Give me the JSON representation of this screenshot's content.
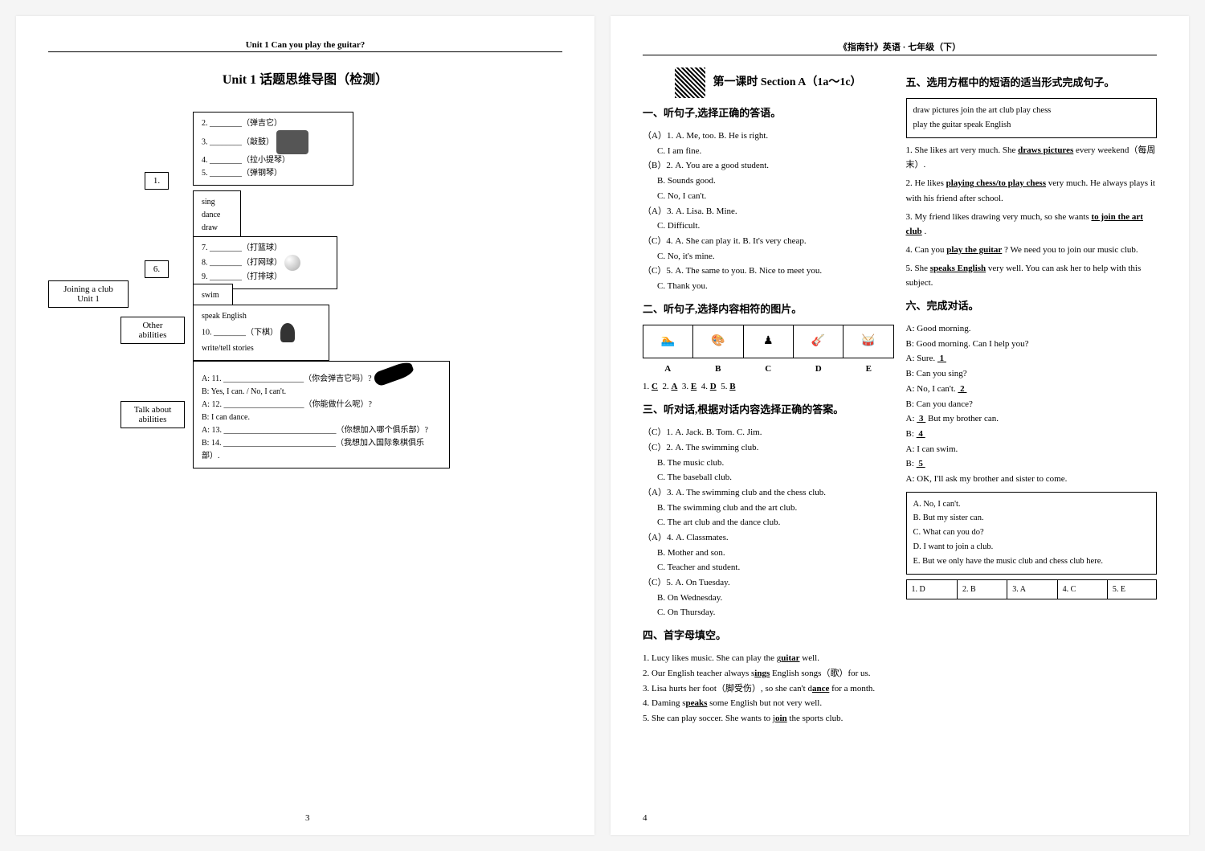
{
  "left_page": {
    "header": "Unit 1   Can you play the guitar?",
    "title": "Unit 1   话题思维导图（检测）",
    "page_number": "3",
    "mindmap": {
      "root": "Joining a club\nUnit 1",
      "branch1_num": "1.",
      "verbs_box": [
        "sing",
        "dance",
        "draw"
      ],
      "instruments": [
        "2. ________（弹吉它）",
        "3. ________（敲鼓）",
        "4. ________（拉小提琴）",
        "5. ________（弹钢琴）"
      ],
      "branch6_num": "6.",
      "sports": [
        "7. ________（打篮球）",
        "8. ________（打网球）",
        "9. ________（打排球）"
      ],
      "swim_box": "swim",
      "other_label": "Other abilities",
      "other_box": [
        "speak English",
        "10. ________（下棋）",
        "write/tell stories"
      ],
      "talk_label": "Talk about\nabilities",
      "talk_box": [
        "A: 11. ____________________（你会弹吉它吗）?",
        "B: Yes, I can. / No, I can't.",
        "A: 12. ____________________（你能做什么呢）?",
        "B: I can dance.",
        "A: 13. ____________________________（你想加入哪个俱乐部）?",
        "B: 14. ____________________________（我想加入国际象棋俱乐部）."
      ]
    }
  },
  "right_page": {
    "header": "《指南针》英语 · 七年级（下）",
    "page_number": "4",
    "lesson": "第一课时   Section A（1a～1c）",
    "sec1_title": "一、听句子,选择正确的答语。",
    "sec1": [
      "（A）1. A. Me, too.        B. He is right.",
      "          C. I am fine.",
      "（B）2. A. You are a good student.",
      "          B. Sounds good.",
      "          C. No, I can't.",
      "（A）3. A. Lisa.           B. Mine.",
      "          C. Difficult.",
      "（C）4. A. She can play it.   B. It's very cheap.",
      "          C. No, it's mine.",
      "（C）5. A. The same to you.  B. Nice to meet you.",
      "          C. Thank you."
    ],
    "sec2_title": "二、听句子,选择内容相符的图片。",
    "pic_labels": [
      "A",
      "B",
      "C",
      "D",
      "E"
    ],
    "sec2_ans_line": "1.  C   2.  A   3.  E   4.  D   5.  B",
    "sec3_title": "三、听对话,根据对话内容选择正确的答案。",
    "sec3": [
      "（C）1. A. Jack.      B. Tom.       C. Jim.",
      "（C）2. A. The swimming club.",
      "          B. The music club.",
      "          C. The baseball club.",
      "（A）3. A. The swimming club and the chess club.",
      "          B. The swimming club and the art club.",
      "          C. The art club and the dance club.",
      "（A）4. A. Classmates.",
      "          B. Mother and son.",
      "          C. Teacher and student.",
      "（C）5. A. On Tuesday.",
      "          B. On Wednesday.",
      "          C. On Thursday."
    ],
    "sec4_title": "四、首字母填空。",
    "sec4": [
      {
        "pre": "1. Lucy likes music. She can play the g",
        "ans": "uitar",
        "post": "   well."
      },
      {
        "pre": "2. Our English teacher always s",
        "ans": "ings",
        "post": "      English songs（歌）for us."
      },
      {
        "pre": "3. Lisa hurts her foot（脚受伤）, so she can't d",
        "ans": "ance",
        "post": "   for a month."
      },
      {
        "pre": "4. Daming s",
        "ans": "peaks",
        "post": "     some English but not very well."
      },
      {
        "pre": "5. She can play soccer. She wants to j",
        "ans": "oin",
        "post": "   the sports club."
      }
    ],
    "sec5_title": "五、选用方框中的短语的适当形式完成句子。",
    "sec5_box": "draw pictures     join the art club     play chess\nplay the guitar   speak English",
    "sec5": [
      {
        "pre": "1. She likes art very much. She  ",
        "ans": "draws pictures",
        "post": "  every weekend（每周末）."
      },
      {
        "pre": "2. He likes  ",
        "ans": "playing chess/to play chess",
        "post": "  very much. He always plays it with his friend after school."
      },
      {
        "pre": "3. My friend likes drawing very much, so she wants  ",
        "ans": "to join the art club",
        "post": "  ."
      },
      {
        "pre": "4. Can you  ",
        "ans": "play the guitar",
        "post": "  ? We need you to join our music club."
      },
      {
        "pre": "5. She  ",
        "ans": "speaks English",
        "post": "  very well. You can ask her to help with this subject."
      }
    ],
    "sec6_title": "六、完成对话。",
    "sec6_dialogue": [
      "A: Good morning.",
      "B: Good morning. Can I help you?",
      "A: Sure.   1  ",
      "B: Can you sing?",
      "A: No, I can't.   2  ",
      "B: Can you dance?",
      "A:   3   But my brother can.",
      "B:   4  ",
      "A: I can swim.",
      "B:   5  ",
      "A: OK, I'll ask my brother and sister to come."
    ],
    "sec6_options": [
      "A. No, I can't.",
      "B. But my sister can.",
      "C. What can you do?",
      "D. I want to join a club.",
      "E. But we only have the music club and chess club here."
    ],
    "sec6_answers": [
      "1. D",
      "2. B",
      "3. A",
      "4. C",
      "5. E"
    ]
  }
}
